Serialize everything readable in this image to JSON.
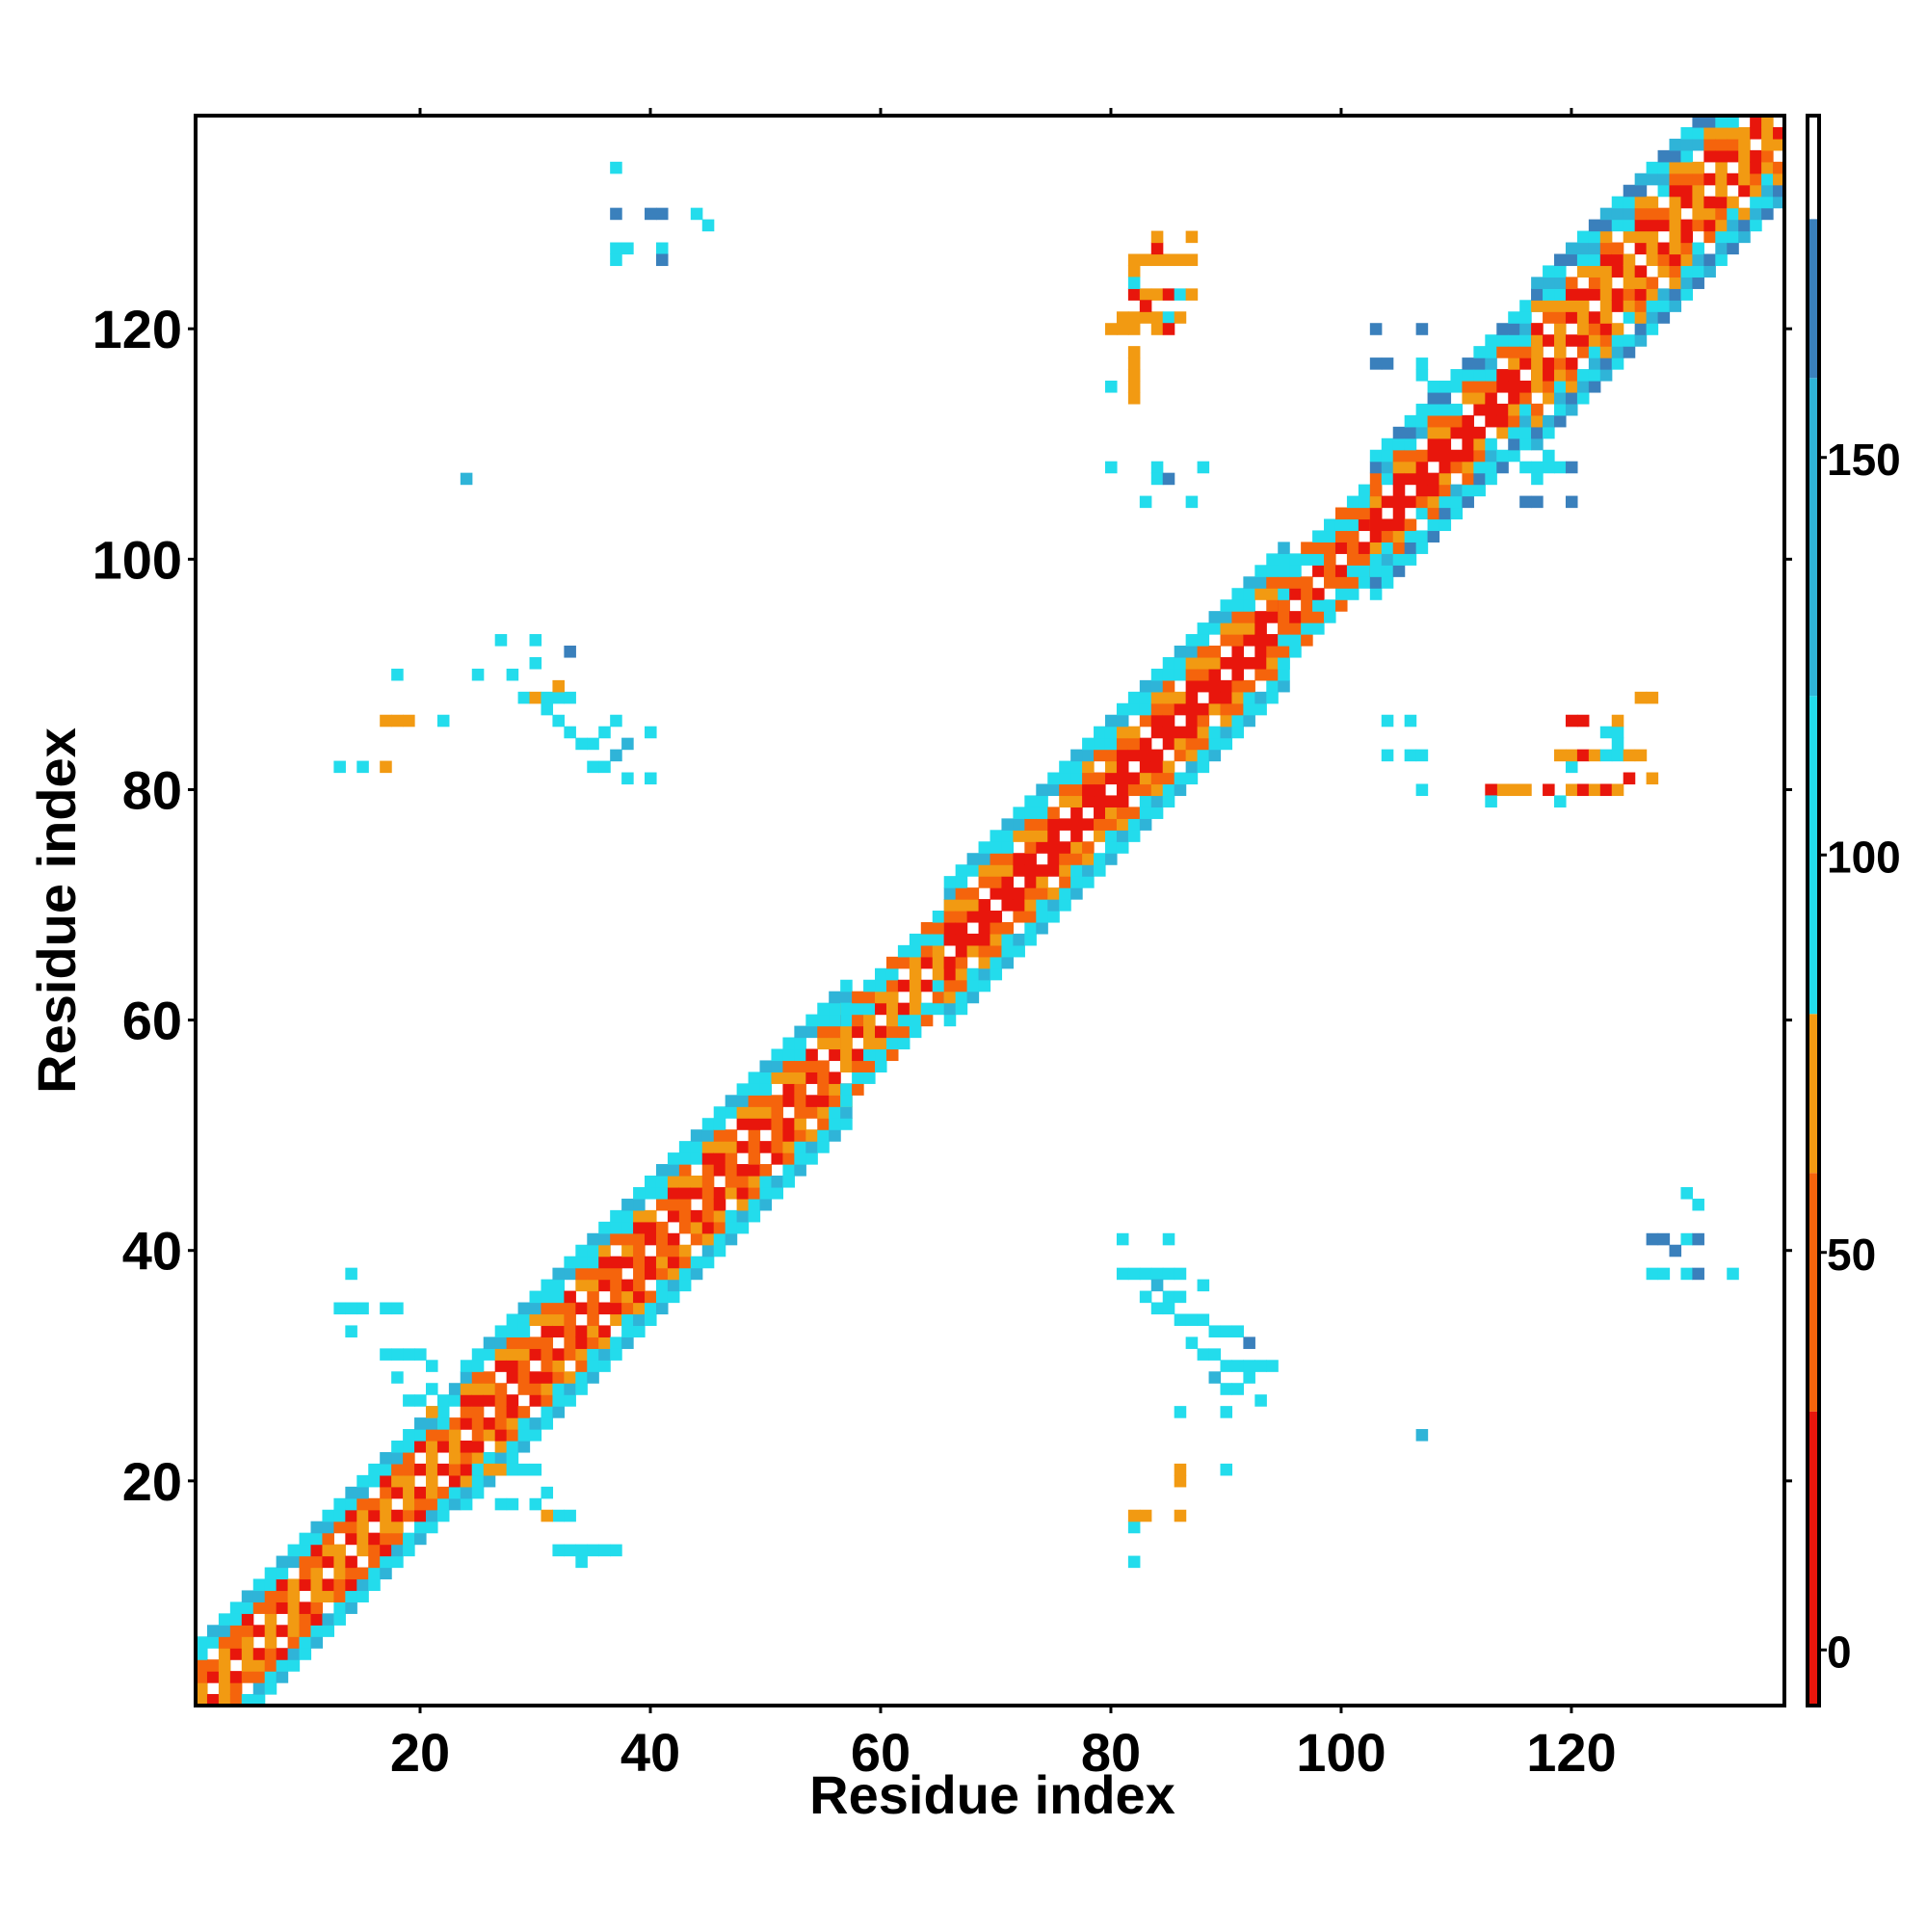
{
  "chart_data": {
    "type": "heatmap",
    "title": "",
    "xlabel": "Residue index",
    "ylabel": "Residue index",
    "n_residues": 138,
    "xlim": [
      0.5,
      138.5
    ],
    "ylim": [
      0.5,
      138.5
    ],
    "xticks": [
      20,
      40,
      60,
      80,
      100,
      120
    ],
    "yticks": [
      20,
      40,
      60,
      80,
      100,
      120
    ],
    "colorbar": {
      "ticks": [
        0,
        50,
        100,
        150
      ],
      "range": [
        -7,
        193
      ],
      "bands": [
        {
          "from": -7,
          "to": 30,
          "color": "#e8160c"
        },
        {
          "from": 30,
          "to": 60,
          "color": "#f5640c"
        },
        {
          "from": 60,
          "to": 80,
          "color": "#f29a12"
        },
        {
          "from": 80,
          "to": 120,
          "color": "#23dcec"
        },
        {
          "from": 120,
          "to": 160,
          "color": "#2fb4d8"
        },
        {
          "from": 160,
          "to": 180,
          "color": "#3a80bc"
        },
        {
          "from": 180,
          "to": 193,
          "color": "#ffffff"
        }
      ]
    },
    "palette": {
      "r": "#e8160c",
      "o": "#f5640c",
      "a": "#f29a12",
      "c": "#23dcec",
      "b": "#2fb4d8",
      "d": "#3a80bc"
    },
    "diagonal_segments": [
      {
        "start": 1,
        "end": 24,
        "width": 5,
        "pattern": "roaoorcbc"
      },
      {
        "start": 24,
        "end": 57,
        "width": 6,
        "pattern": "rooraocbcc"
      },
      {
        "start": 57,
        "end": 66,
        "width": 4,
        "pattern": "roaocc"
      },
      {
        "start": 66,
        "end": 95,
        "width": 6,
        "pattern": "roroaocbcc"
      },
      {
        "start": 95,
        "end": 103,
        "width": 4,
        "pattern": "raoocc"
      },
      {
        "start": 103,
        "end": 117,
        "width": 6,
        "pattern": "roraocbccd"
      },
      {
        "start": 117,
        "end": 138,
        "width": 7,
        "pattern": "roaroacbcbd"
      }
    ],
    "offdiag_blocks": [
      {
        "x": [
          13,
          40
        ],
        "y": [
          82,
          93
        ],
        "cells": "c:13,82 c:15,82 a:17,82 a:17,86 a:18,86 a:19,86 c:18,90 c:22,86 c:25,90 c:27,93 c:28,90 c:29,88 a:30,88 c:31,88 c:32,88 c:33,88 a:32,89 c:30,91 c:31,87 c:32,86 c:33,85 c:34,84 c:35,84 c:36,85 c:37,86 c:35,82 c:36,82 c:38,81 c:40,85 c:40,81 d:33,92 b:37,83 b:38,84 c:30,93"
      },
      {
        "x": [
          13,
          33
        ],
        "y": [
          13,
          40
        ],
        "cells": "c:14,38 c:13,35 c:14,35 c:15,35 c:17,35 c:18,35 c:14,33 c:17,31 c:18,31 c:19,31 c:20,31 c:21,30 c:18,29 c:21,28 c:19,27 c:20,27 a:21,26 c:22,25 c:25,21 a:26,21 a:27,21 c:28,21 c:29,21 c:30,21 c:31,19 c:30,18 c:32,17 c:33,17 c:27,18 c:28,18 a:31,17 c:32,14 c:33,14 c:34,14 c:35,14 c:36,14 c:37,14 c:34,13"
      },
      {
        "x": [
          36,
          45
        ],
        "y": [
          126,
          135
        ],
        "cells": "c:37,134 d:37,130 d:40,130 d:41,130 c:44,130 c:45,129 c:37,127 c:38,127 c:41,127 d:41,126 c:37,126"
      },
      {
        "x": [
          80,
          94
        ],
        "y": [
          13,
          40
        ],
        "cells": "c:81,41 c:85,41 c:81,38 c:82,38 c:83,38 c:84,38 c:85,38 c:86,38 c:83,36 c:85,36 c:86,36 c:88,37 c:84,35 c:85,35 c:86,34 c:87,34 c:88,34 c:89,33 c:90,33 c:91,33 c:87,32 c:88,31 c:89,31 c:90,30 c:91,30 c:92,30 c:93,30 c:94,30 c:90,28 c:91,28 c:92,29 c:86,26 c:90,26 c:93,27 c:82,16 c:82,13 a:82,17 a:83,17 a:86,17 a:86,20 a:86,21 c:90,21 d:92,32 b:89,29 b:84,37"
      },
      {
        "x": [
          103,
          124
        ],
        "y": [
          79,
          88
        ],
        "cells": "c:104,86 c:106,86 c:104,83 c:106,83 c:107,83 c:107,80 a:114,80 a:115,80 r:113,80 a:116,80 r:118,80 a:120,80 r:121,80 a:122,80 r:123,80 a:124,80 c:120,82 a:119,83 a:120,83 r:121,83 a:122,83 c:123,83 c:124,83 a:125,83 a:126,83 r:125,81 a:127,81 c:123,85 c:124,85 a:124,86 a:126,88 a:127,88 r:120,86 r:121,86 c:124,84 c:119,79 c:113,79"
      },
      {
        "x": [
          80,
          88
        ],
        "y": [
          113,
          129
        ],
        "cells": "a:82,126 a:83,126 a:84,126 a:85,126 a:86,126 a:87,126 a:82,125 r:82,123 a:83,123 a:84,123 r:85,123 c:86,123 a:87,123 a:81,121 a:82,121 a:83,121 a:84,121 c:85,121 a:86,121 a:80,120 a:81,120 a:82,120 a:84,120 r:85,120 a:82,118 a:82,117 a:82,116 a:82,115 c:80,115 a:82,114 r:84,127 a:87,128 a:84,128 r:83,122 c:82,124"
      },
      {
        "x": [
          80,
          90
        ],
        "y": [
          104,
          109
        ],
        "cells": "c:80,108 c:84,108 c:88,108 c:83,105 c:87,105 c:84,107 d:85,107"
      },
      {
        "x": [
          103,
          124
        ],
        "y": [
          103,
          122
        ],
        "cells": "d:103,120 d:107,120 d:103,117 d:104,117 c:107,117 c:107,116 c:108,115 c:116,108 c:117,108 c:118,108 c:119,108 d:120,108 d:116,105 d:117,105 d:120,105 c:118,109 c:117,107"
      },
      {
        "x": [
          125,
          135
        ],
        "y": [
          37,
          45
        ],
        "cells": "c:130,45 c:131,44 d:127,41 d:128,41 c:130,41 d:131,41 c:127,38 c:128,38 c:130,38 d:131,38 c:134,38 d:129,40"
      },
      {
        "x": [
          24,
          26
        ],
        "y": [
          105,
          110
        ],
        "cells": "b:24,107"
      },
      {
        "x": [
          106,
          108
        ],
        "y": [
          22,
          26
        ],
        "cells": "b:107,24"
      }
    ]
  }
}
